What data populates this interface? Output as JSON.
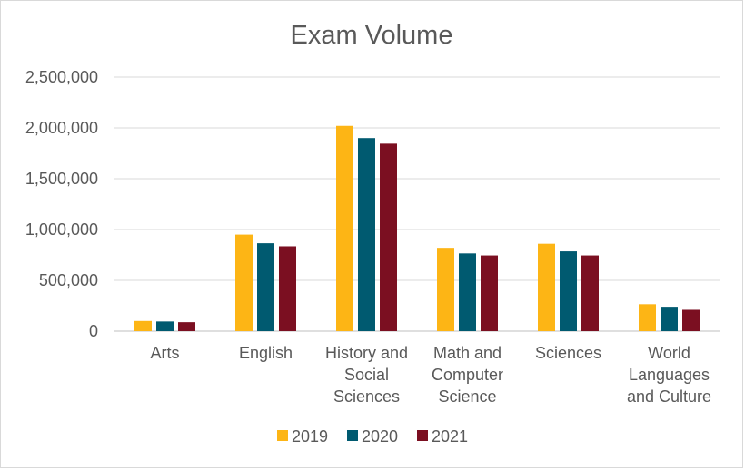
{
  "chart_data": {
    "type": "bar",
    "title": "Exam Volume",
    "xlabel": "",
    "ylabel": "",
    "categories": [
      [
        "Arts"
      ],
      [
        "English"
      ],
      [
        "History and",
        "Social",
        "Sciences"
      ],
      [
        "Math and",
        "Computer",
        "Science"
      ],
      [
        "Sciences"
      ],
      [
        "World",
        "Languages",
        "and Culture"
      ]
    ],
    "series": [
      {
        "name": "2019",
        "color": "#FDB515",
        "values": [
          100000,
          950000,
          2020000,
          820000,
          860000,
          265000
        ]
      },
      {
        "name": "2020",
        "color": "#005A70",
        "values": [
          95000,
          865000,
          1900000,
          765000,
          785000,
          240000
        ]
      },
      {
        "name": "2021",
        "color": "#7B0F21",
        "values": [
          88000,
          835000,
          1845000,
          745000,
          745000,
          210000
        ]
      }
    ],
    "ylim": [
      0,
      2500000
    ],
    "yticks": [
      0,
      500000,
      1000000,
      1500000,
      2000000,
      2500000
    ],
    "ytick_labels": [
      "0",
      "500,000",
      "1,000,000",
      "1,500,000",
      "2,000,000",
      "2,500,000"
    ],
    "grid": true,
    "legend": "bottom"
  }
}
